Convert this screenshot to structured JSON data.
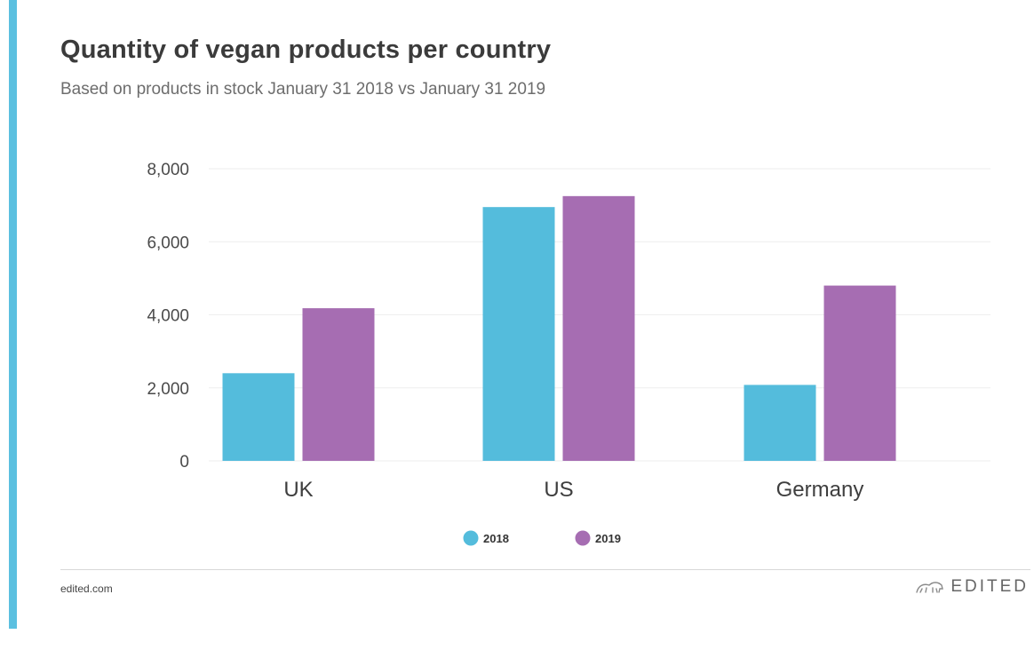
{
  "header": {
    "title": "Quantity of vegan products per country",
    "subtitle": "Based on products in stock January 31 2018 vs January 31 2019"
  },
  "colors": {
    "accent": "#5bc0e0",
    "series_2018": "#54bcdc",
    "series_2019": "#a66db2",
    "grid": "#eeeeee"
  },
  "chart_data": {
    "type": "bar",
    "categories": [
      "UK",
      "US",
      "Germany"
    ],
    "series": [
      {
        "name": "2018",
        "values": [
          2400,
          6950,
          2080
        ]
      },
      {
        "name": "2019",
        "values": [
          4180,
          7250,
          4800
        ]
      }
    ],
    "yticks": [
      "0",
      "2,000",
      "4,000",
      "6,000",
      "8,000"
    ],
    "ytick_values": [
      0,
      2000,
      4000,
      6000,
      8000
    ],
    "ylim": [
      0,
      8000
    ],
    "title": "Quantity of vegan products per country",
    "xlabel": "",
    "ylabel": "",
    "legend_position": "bottom-center",
    "grid": true
  },
  "footer": {
    "site": "edited.com",
    "brand": "EDITED",
    "brand_icon": "bear-icon"
  }
}
